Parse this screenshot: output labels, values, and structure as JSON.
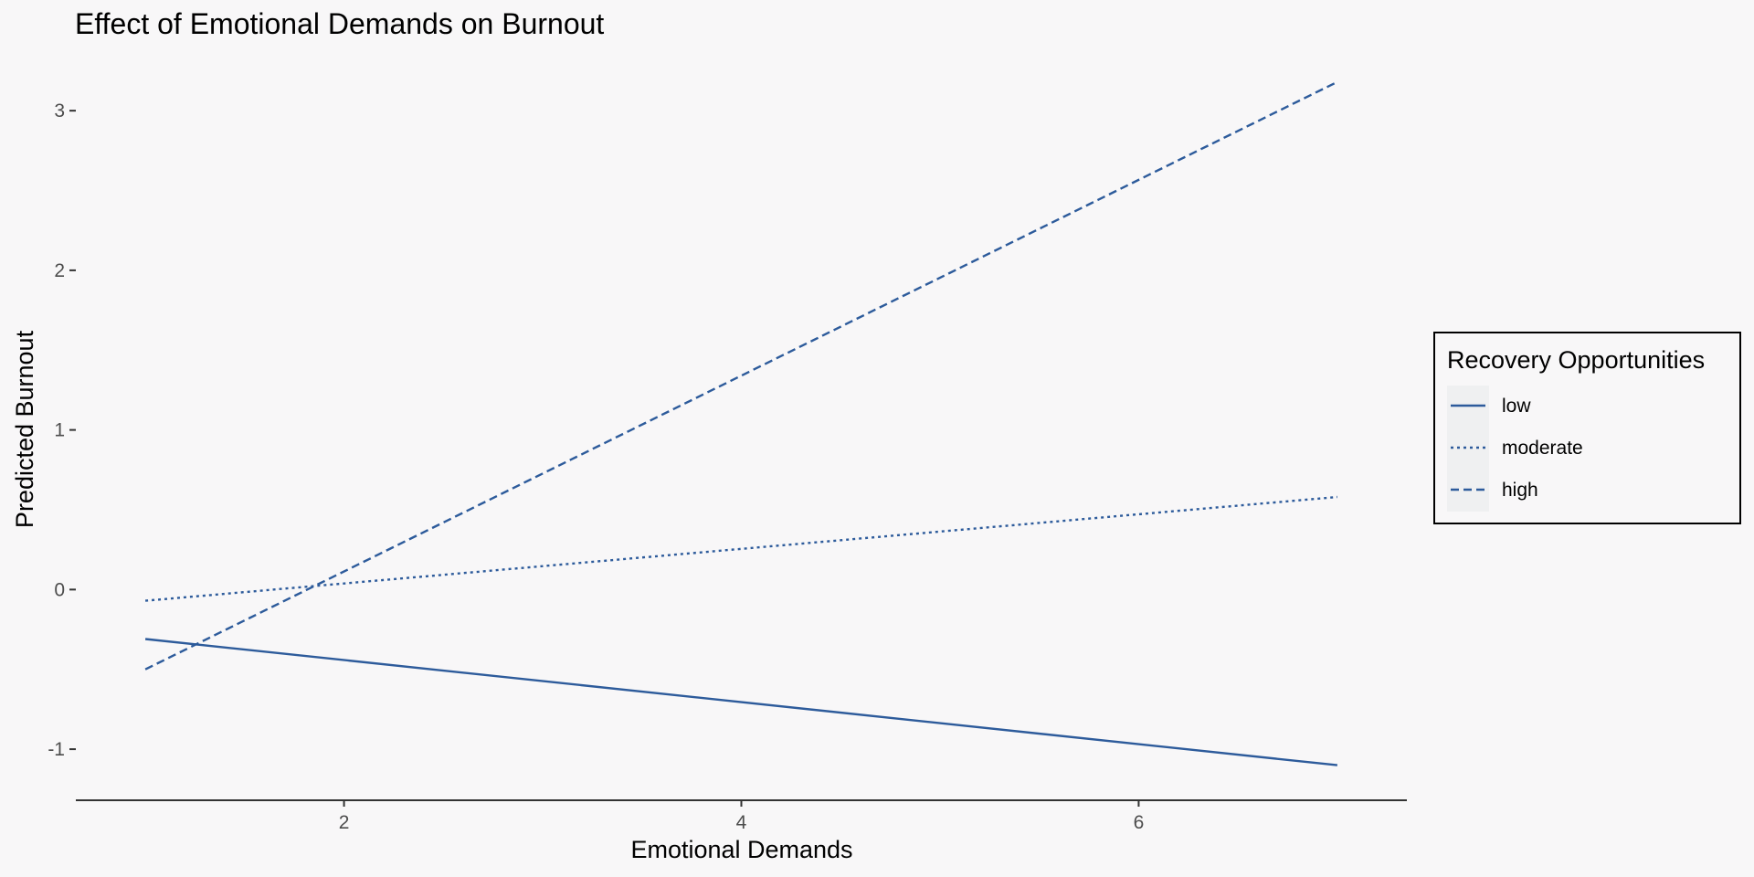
{
  "chart_data": {
    "type": "line",
    "title": "Effect of Emotional Demands on Burnout",
    "xlabel": "Emotional Demands",
    "ylabel": "Predicted Burnout",
    "xlim": [
      0.65,
      7.35
    ],
    "ylim": [
      -1.32,
      3.35
    ],
    "x_ticks": [
      2,
      4,
      6
    ],
    "y_ticks": [
      -1,
      0,
      1,
      2,
      3
    ],
    "grid": false,
    "legend": {
      "title": "Recovery Opportunities",
      "placement": "right"
    },
    "line_color": "#2d5b9b",
    "series": [
      {
        "name": "low",
        "dash": "solid",
        "x": [
          1,
          7
        ],
        "y": [
          -0.31,
          -1.1
        ]
      },
      {
        "name": "moderate",
        "dash": "dotted",
        "x": [
          1,
          7
        ],
        "y": [
          -0.07,
          0.58
        ]
      },
      {
        "name": "high",
        "dash": "dashed",
        "x": [
          1,
          7
        ],
        "y": [
          -0.5,
          3.18
        ]
      }
    ]
  }
}
